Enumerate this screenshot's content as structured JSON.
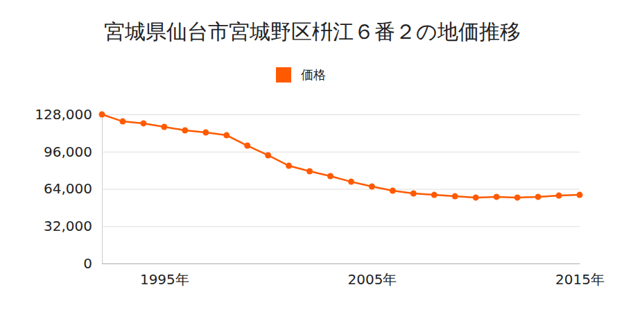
{
  "chart_data": {
    "type": "line",
    "title": "宮城県仙台市宮城野区枡江６番２の地価推移",
    "x": [
      1992,
      1993,
      1994,
      1995,
      1996,
      1997,
      1998,
      1999,
      2000,
      2001,
      2002,
      2003,
      2004,
      2005,
      2006,
      2007,
      2008,
      2009,
      2010,
      2011,
      2012,
      2013,
      2014,
      2015
    ],
    "series": [
      {
        "name": "価格",
        "color": "#ff5a00",
        "marker": "circle",
        "values": [
          128000,
          122000,
          120300,
          117300,
          114300,
          112500,
          110100,
          101200,
          92900,
          83900,
          79200,
          75000,
          70200,
          66100,
          62500,
          60100,
          58900,
          57700,
          56600,
          57200,
          56600,
          57200,
          58300,
          58900
        ]
      }
    ],
    "xlim": [
      1992,
      2015
    ],
    "xticks": [
      {
        "value": 1995,
        "label": "1995年"
      },
      {
        "value": 2005,
        "label": "2005年"
      },
      {
        "value": 2015,
        "label": "2015年"
      }
    ],
    "ylim": [
      0,
      128000
    ],
    "yticks": [
      0,
      {
        "value": 32000,
        "label": "32,000"
      },
      {
        "value": 64000,
        "label": "64,000"
      },
      {
        "value": 96000,
        "label": "96,000"
      },
      {
        "value": 128000,
        "label": "128,000"
      }
    ],
    "grid": true,
    "legend": "top"
  }
}
